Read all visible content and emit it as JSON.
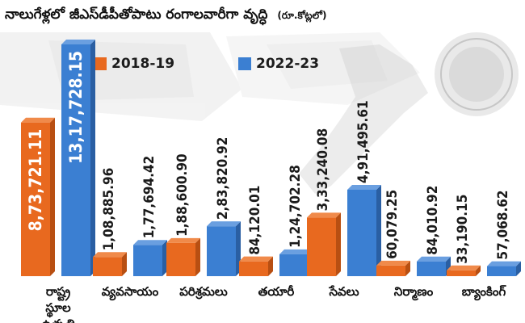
{
  "title": "నాలుగేళ్లలో జీఎస్‌డీపీతోపాటు రంగాలవారీగా వృద్ధి",
  "unit": "(రూ.కోట్లలో)",
  "chart_data": {
    "type": "bar",
    "categories": [
      "రాష్ట్ర స్థూల ఉత్పత్తి",
      "వ్యవసాయం",
      "పరిశ్రమలు",
      "తయారీ",
      "సేవలు",
      "నిర్మాణం",
      "బ్యాంకింగ్"
    ],
    "series": [
      {
        "name": "2018-19",
        "color": "#e8691f",
        "values": [
          873721.11,
          108885.96,
          188600.9,
          84120.01,
          333240.08,
          60079.25,
          33190.15
        ],
        "labels": [
          "8,73,721.11",
          "1,08,885.96",
          "1,88,600.90",
          "84,120.01",
          "3,33,240.08",
          "60,079.25",
          "33,190.15"
        ]
      },
      {
        "name": "2022-23",
        "color": "#3b7fd2",
        "values": [
          1317728.15,
          177694.42,
          283820.92,
          124702.28,
          491495.61,
          84010.92,
          57068.62
        ],
        "labels": [
          "13,17,728.15",
          "1,77,694.42",
          "2,83,820.92",
          "1,24,702.28",
          "4,91,495.61",
          "84,010.92",
          "57,068.62"
        ]
      }
    ],
    "legend_position": "top-left",
    "grid": false,
    "xlabel": "",
    "ylabel": ""
  }
}
